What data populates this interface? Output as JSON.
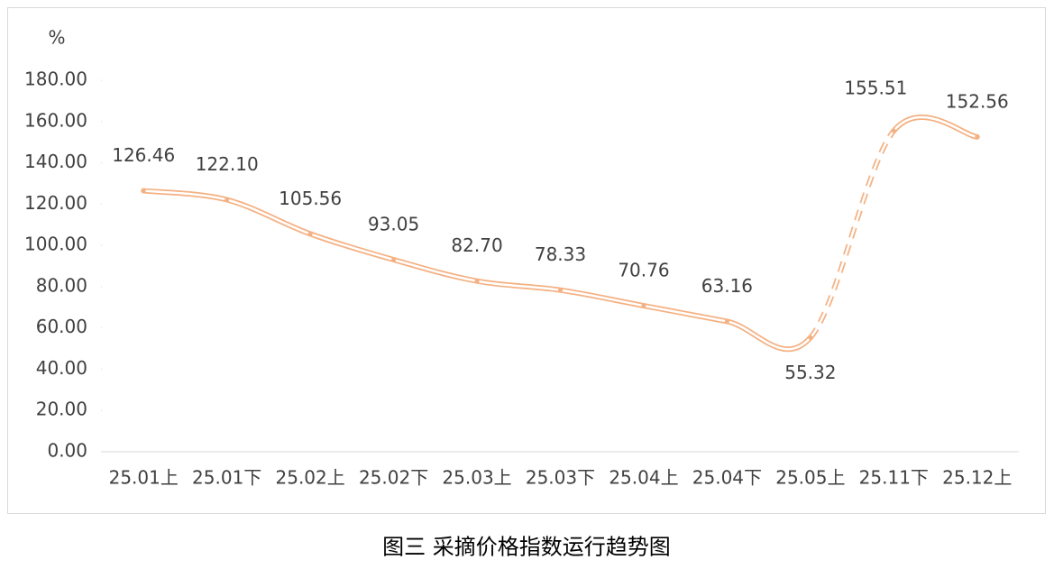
{
  "chart_data": {
    "type": "line",
    "caption": "图三  采摘价格指数运行趋势图",
    "y_label": "%",
    "categories": [
      "25.01上",
      "25.01下",
      "25.02上",
      "25.02下",
      "25.03上",
      "25.03下",
      "25.04上",
      "25.04下",
      "25.05上",
      "25.11下",
      "25.12上"
    ],
    "series": [
      {
        "name": "采摘价格指数",
        "color": "#f4b183",
        "values": [
          126.46,
          122.1,
          105.56,
          93.05,
          82.7,
          78.33,
          70.76,
          63.16,
          55.32,
          155.51,
          152.56
        ],
        "value_labels": [
          "126.46",
          "122.10",
          "105.56",
          "93.05",
          "82.70",
          "78.33",
          "70.76",
          "63.16",
          "55.32",
          "155.51",
          "152.56"
        ]
      }
    ],
    "dashed_segments": [
      {
        "from": "25.05上",
        "to": "25.11下"
      }
    ],
    "ylim": [
      0,
      180
    ],
    "yticks": [
      {
        "value": 0,
        "label": "0.00"
      },
      {
        "value": 20,
        "label": "20.00"
      },
      {
        "value": 40,
        "label": "40.00"
      },
      {
        "value": 60,
        "label": "60.00"
      },
      {
        "value": 80,
        "label": "80.00"
      },
      {
        "value": 100,
        "label": "100.00"
      },
      {
        "value": 120,
        "label": "120.00"
      },
      {
        "value": 140,
        "label": "140.00"
      },
      {
        "value": 160,
        "label": "160.00"
      },
      {
        "value": 180,
        "label": "180.00"
      }
    ],
    "grid": false
  }
}
